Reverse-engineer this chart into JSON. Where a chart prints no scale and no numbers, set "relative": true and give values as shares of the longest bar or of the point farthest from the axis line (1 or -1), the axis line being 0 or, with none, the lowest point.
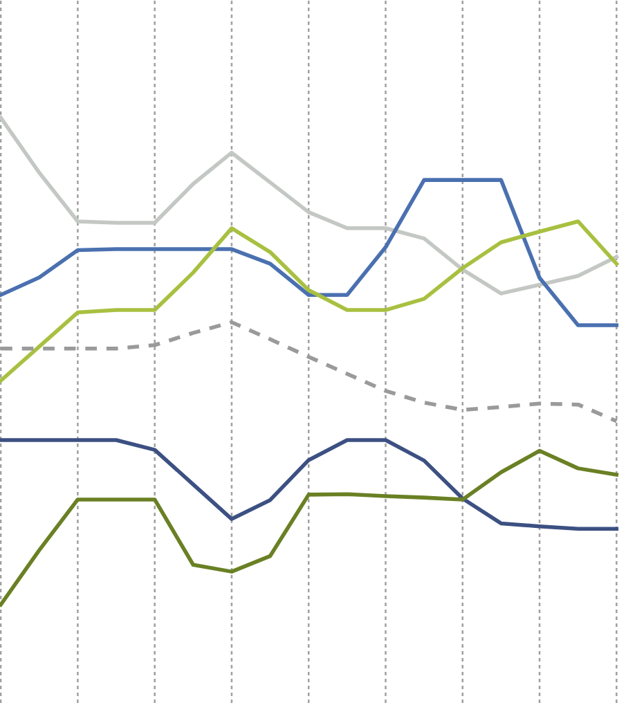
{
  "chart_data": {
    "type": "line",
    "relative": true,
    "grid": "x",
    "marker": "none",
    "categories": [
      null,
      null,
      null,
      null,
      null,
      null,
      null,
      null,
      null,
      null,
      null,
      null,
      null,
      null,
      null,
      null,
      null
    ],
    "series": [
      {
        "color": "#c4c8c4",
        "line_style": "solid",
        "values": [
          1.0,
          0.887,
          0.787,
          0.784,
          0.784,
          0.864,
          0.928,
          0.867,
          0.806,
          0.773,
          0.773,
          0.752,
          0.688,
          0.639,
          0.657,
          0.675,
          0.714
        ]
      },
      {
        "color": "#4a70b0",
        "line_style": "solid",
        "values": [
          0.636,
          0.672,
          0.728,
          0.73,
          0.73,
          0.73,
          0.73,
          0.7,
          0.636,
          0.636,
          0.734,
          0.872,
          0.872,
          0.872,
          0.671,
          0.574,
          0.574
        ]
      },
      {
        "color": "#a8c040",
        "line_style": "solid",
        "values": [
          0.46,
          0.53,
          0.6,
          0.605,
          0.605,
          0.682,
          0.773,
          0.724,
          0.646,
          0.605,
          0.605,
          0.628,
          0.691,
          0.744,
          0.766,
          0.787,
          0.7
        ]
      },
      {
        "color": "#9a9a9a",
        "line_style": "dashed",
        "values": [
          0.526,
          0.526,
          0.526,
          0.526,
          0.533,
          0.558,
          0.58,
          0.545,
          0.509,
          0.474,
          0.439,
          0.415,
          0.4,
          0.406,
          0.413,
          0.411,
          0.377
        ]
      },
      {
        "color": "#3c5082",
        "line_style": "solid",
        "values": [
          0.338,
          0.338,
          0.338,
          0.338,
          0.318,
          0.247,
          0.176,
          0.215,
          0.297,
          0.338,
          0.338,
          0.296,
          0.218,
          0.167,
          0.161,
          0.156,
          0.156
        ]
      },
      {
        "color": "#6a8024",
        "line_style": "solid",
        "values": [
          0,
          0.112,
          0.216,
          0.216,
          0.216,
          0.082,
          0.068,
          0.1,
          0.226,
          0.227,
          0.223,
          0.22,
          0.216,
          0.272,
          0.316,
          0.28,
          0.267
        ]
      }
    ]
  }
}
